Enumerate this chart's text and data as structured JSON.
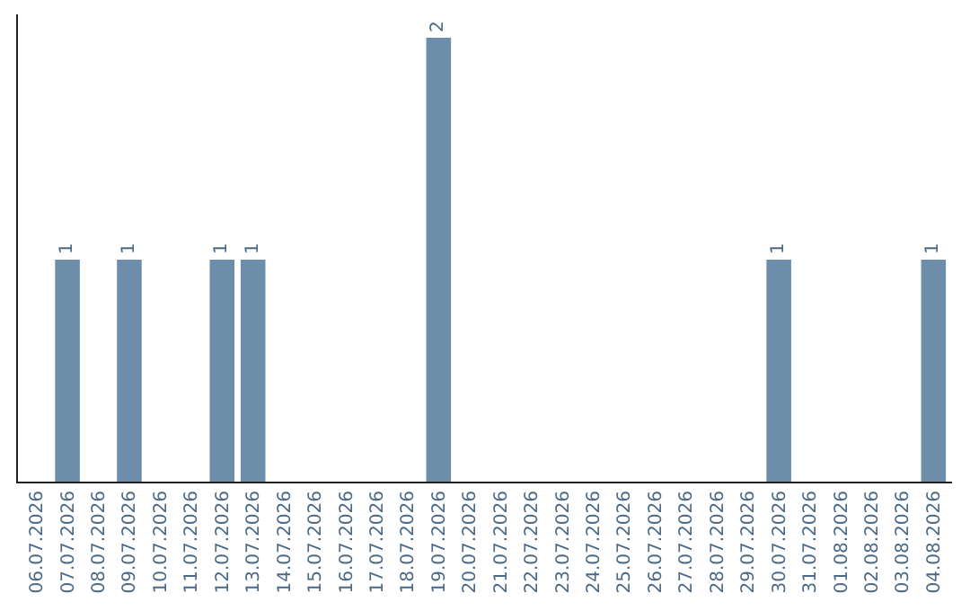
{
  "chart_data": {
    "type": "bar",
    "categories": [
      "06.07.2026",
      "07.07.2026",
      "08.07.2026",
      "09.07.2026",
      "10.07.2026",
      "11.07.2026",
      "12.07.2026",
      "13.07.2026",
      "14.07.2026",
      "15.07.2026",
      "16.07.2026",
      "17.07.2026",
      "18.07.2026",
      "19.07.2026",
      "20.07.2026",
      "21.07.2026",
      "22.07.2026",
      "23.07.2026",
      "24.07.2026",
      "25.07.2026",
      "26.07.2026",
      "27.07.2026",
      "28.07.2026",
      "29.07.2026",
      "30.07.2026",
      "31.07.2026",
      "01.08.2026",
      "02.08.2026",
      "03.08.2026",
      "04.08.2026"
    ],
    "values": [
      0,
      1,
      0,
      1,
      0,
      0,
      1,
      1,
      0,
      0,
      0,
      0,
      0,
      2,
      0,
      0,
      0,
      0,
      0,
      0,
      0,
      0,
      0,
      0,
      1,
      0,
      0,
      0,
      0,
      1
    ],
    "value_labels": [
      null,
      "1",
      null,
      "1",
      null,
      null,
      "1",
      "1",
      null,
      null,
      null,
      null,
      null,
      "2",
      null,
      null,
      null,
      null,
      null,
      null,
      null,
      null,
      null,
      null,
      "1",
      null,
      null,
      null,
      null,
      "1"
    ],
    "color": "#6d8eab",
    "grid": false,
    "tick_labels": "x"
  }
}
